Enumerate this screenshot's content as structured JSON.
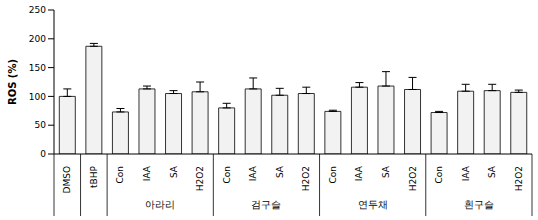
{
  "chart_data": {
    "type": "bar",
    "y_label": "ROS (%)",
    "categories": [
      "DMSO",
      "tBHP",
      "Con",
      "IAA",
      "SA",
      "H2O2",
      "Con",
      "IAA",
      "SA",
      "H2O2",
      "Con",
      "IAA",
      "SA",
      "H2O2",
      "Con",
      "IAA",
      "SA",
      "H2O2"
    ],
    "groups": [
      null,
      null,
      "아라리",
      "아라리",
      "아라리",
      "아라리",
      "검구슬",
      "검구슬",
      "검구슬",
      "검구슬",
      "연두채",
      "연두채",
      "연두채",
      "연두채",
      "흰구슬",
      "흰구슬",
      "흰구슬",
      "흰구슬"
    ],
    "values": [
      100,
      187,
      73,
      113,
      105,
      108,
      80,
      113,
      102,
      105,
      74,
      116,
      118,
      112,
      72,
      109,
      110,
      107
    ],
    "errors": [
      13,
      5,
      6,
      5,
      5,
      17,
      8,
      19,
      12,
      11,
      2,
      8,
      25,
      21,
      2,
      12,
      11,
      4
    ],
    "color": "#f2f2f2",
    "ylim": [
      0,
      250
    ],
    "yticks": [
      0,
      50,
      100,
      150,
      200,
      250
    ],
    "grid": false
  }
}
